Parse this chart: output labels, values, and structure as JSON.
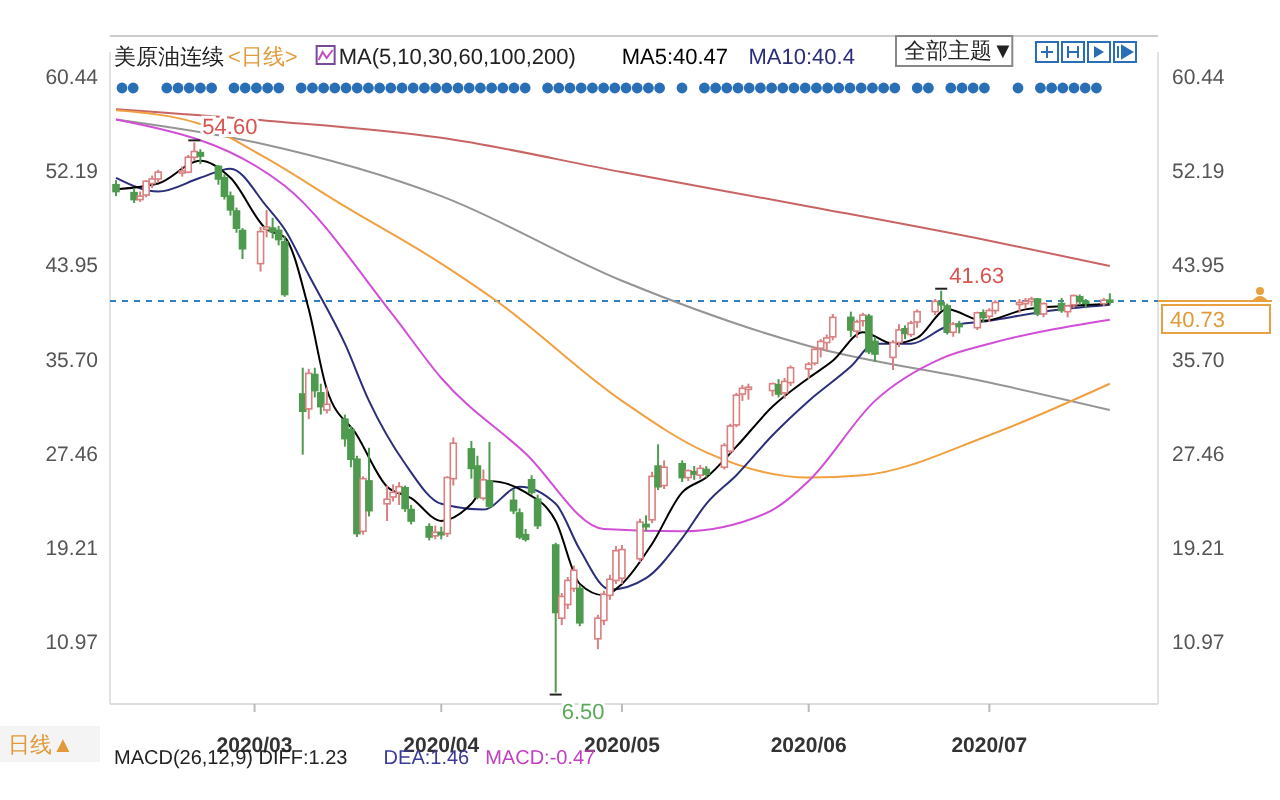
{
  "chart_data": {
    "type": "candlestick",
    "title": "美原油连续",
    "subtitle": "<日线>",
    "legend_title": "MA(5,10,30,60,100,200)",
    "legend": "top",
    "x": [
      "2020-02-07",
      "2020-02-10",
      "2020-02-11",
      "2020-02-12",
      "2020-02-13",
      "2020-02-14",
      "2020-02-18",
      "2020-02-19",
      "2020-02-20",
      "2020-02-21",
      "2020-02-24",
      "2020-02-25",
      "2020-02-26",
      "2020-02-27",
      "2020-02-28",
      "2020-03-02",
      "2020-03-03",
      "2020-03-04",
      "2020-03-05",
      "2020-03-06",
      "2020-03-09",
      "2020-03-10",
      "2020-03-11",
      "2020-03-12",
      "2020-03-13",
      "2020-03-16",
      "2020-03-17",
      "2020-03-18",
      "2020-03-19",
      "2020-03-20",
      "2020-03-23",
      "2020-03-24",
      "2020-03-25",
      "2020-03-26",
      "2020-03-27",
      "2020-03-30",
      "2020-03-31",
      "2020-04-01",
      "2020-04-02",
      "2020-04-03",
      "2020-04-06",
      "2020-04-07",
      "2020-04-08",
      "2020-04-09",
      "2020-04-13",
      "2020-04-14",
      "2020-04-15",
      "2020-04-16",
      "2020-04-17",
      "2020-04-20",
      "2020-04-21",
      "2020-04-22",
      "2020-04-23",
      "2020-04-24",
      "2020-04-27",
      "2020-04-28",
      "2020-04-29",
      "2020-04-30",
      "2020-05-01",
      "2020-05-04",
      "2020-05-05",
      "2020-05-06",
      "2020-05-07",
      "2020-05-08",
      "2020-05-11",
      "2020-05-12",
      "2020-05-13",
      "2020-05-14",
      "2020-05-15",
      "2020-05-18",
      "2020-05-19",
      "2020-05-20",
      "2020-05-21",
      "2020-05-22",
      "2020-05-26",
      "2020-05-27",
      "2020-05-28",
      "2020-05-29",
      "2020-06-01",
      "2020-06-02",
      "2020-06-03",
      "2020-06-04",
      "2020-06-05",
      "2020-06-08",
      "2020-06-09",
      "2020-06-10",
      "2020-06-11",
      "2020-06-12",
      "2020-06-15",
      "2020-06-16",
      "2020-06-17",
      "2020-06-18",
      "2020-06-19",
      "2020-06-22",
      "2020-06-23",
      "2020-06-24",
      "2020-06-25",
      "2020-06-26",
      "2020-06-29",
      "2020-06-30",
      "2020-07-01",
      "2020-07-02",
      "2020-07-06",
      "2020-07-07",
      "2020-07-08",
      "2020-07-09",
      "2020-07-10",
      "2020-07-13",
      "2020-07-14",
      "2020-07-15",
      "2020-07-16",
      "2020-07-17",
      "2020-07-20",
      "2020-07-21"
    ],
    "ohlc": [
      [
        50.9,
        51.3,
        49.9,
        50.3
      ],
      [
        50.2,
        50.6,
        49.3,
        49.6
      ],
      [
        49.6,
        50.3,
        49.4,
        49.9
      ],
      [
        50.0,
        51.3,
        49.8,
        51.2
      ],
      [
        51.0,
        51.7,
        50.6,
        51.4
      ],
      [
        51.4,
        52.2,
        51.1,
        52.0
      ],
      [
        52.1,
        52.5,
        51.6,
        52.1
      ],
      [
        52.0,
        53.5,
        51.9,
        53.3
      ],
      [
        53.3,
        54.6,
        53.0,
        53.8
      ],
      [
        53.7,
        54.0,
        52.7,
        53.4
      ],
      [
        52.5,
        52.6,
        50.9,
        51.4
      ],
      [
        51.5,
        51.8,
        49.6,
        49.9
      ],
      [
        49.9,
        50.3,
        48.2,
        48.7
      ],
      [
        48.6,
        48.9,
        46.7,
        47.1
      ],
      [
        46.9,
        47.1,
        44.4,
        45.3
      ],
      [
        44.0,
        47.2,
        43.3,
        46.8
      ],
      [
        47.0,
        48.7,
        46.3,
        47.2
      ],
      [
        47.1,
        48.0,
        46.2,
        46.8
      ],
      [
        46.9,
        47.3,
        45.6,
        46.1
      ],
      [
        45.9,
        46.4,
        41.1,
        41.3
      ],
      [
        32.6,
        34.9,
        27.3,
        31.1
      ],
      [
        31.3,
        34.8,
        30.4,
        34.4
      ],
      [
        34.3,
        34.9,
        32.3,
        32.9
      ],
      [
        32.7,
        33.5,
        30.8,
        31.5
      ],
      [
        31.2,
        33.2,
        30.9,
        31.7
      ],
      [
        30.4,
        30.8,
        28.0,
        28.7
      ],
      [
        29.5,
        29.8,
        26.2,
        26.9
      ],
      [
        26.9,
        27.2,
        20.1,
        20.4
      ],
      [
        20.6,
        25.4,
        20.3,
        25.2
      ],
      [
        25.0,
        27.9,
        21.9,
        22.4
      ],
      [
        23.0,
        24.6,
        21.5,
        23.4
      ],
      [
        23.6,
        24.7,
        23.2,
        24.0
      ],
      [
        24.0,
        24.9,
        22.9,
        24.5
      ],
      [
        24.4,
        24.6,
        22.3,
        22.6
      ],
      [
        22.5,
        22.9,
        21.2,
        21.5
      ],
      [
        21.0,
        21.3,
        19.8,
        20.1
      ],
      [
        20.2,
        21.1,
        19.9,
        20.5
      ],
      [
        20.5,
        21.0,
        19.9,
        20.3
      ],
      [
        20.4,
        25.4,
        20.1,
        25.3
      ],
      [
        25.2,
        28.8,
        24.6,
        28.3
      ],
      [
        27.8,
        28.5,
        25.2,
        26.1
      ],
      [
        26.3,
        27.2,
        23.4,
        23.6
      ],
      [
        23.5,
        26.0,
        23.3,
        25.1
      ],
      [
        25.0,
        28.4,
        22.6,
        22.8
      ],
      [
        23.3,
        24.3,
        22.1,
        22.4
      ],
      [
        22.2,
        22.6,
        19.9,
        20.1
      ],
      [
        20.3,
        20.8,
        19.7,
        19.9
      ],
      [
        25.1,
        25.5,
        23.8,
        24.0
      ],
      [
        23.4,
        23.8,
        20.8,
        21.1
      ],
      [
        19.4,
        19.6,
        6.5,
        13.5
      ],
      [
        13.0,
        15.2,
        12.4,
        14.9
      ],
      [
        14.2,
        16.6,
        13.8,
        16.3
      ],
      [
        15.6,
        17.6,
        15.3,
        17.2
      ],
      [
        15.6,
        15.9,
        12.3,
        12.6
      ],
      [
        11.2,
        13.3,
        10.3,
        13.0
      ],
      [
        12.8,
        15.4,
        12.4,
        15.1
      ],
      [
        15.0,
        16.8,
        14.6,
        16.4
      ],
      [
        16.3,
        19.3,
        16.0,
        18.9
      ],
      [
        16.5,
        19.4,
        16.0,
        19.0
      ],
      [
        18.2,
        21.7,
        17.9,
        21.4
      ],
      [
        21.2,
        22.0,
        20.6,
        21.0
      ],
      [
        21.6,
        25.8,
        21.3,
        25.4
      ],
      [
        26.3,
        28.2,
        24.2,
        24.5
      ],
      [
        24.6,
        26.8,
        24.3,
        26.2
      ],
      [
        26.5,
        26.8,
        24.9,
        25.3
      ],
      [
        25.3,
        26.0,
        25.0,
        25.9
      ],
      [
        25.8,
        26.3,
        25.1,
        25.6
      ],
      [
        25.5,
        26.4,
        25.2,
        26.1
      ],
      [
        26.0,
        26.3,
        25.3,
        25.6
      ],
      [
        26.2,
        28.3,
        26.0,
        28.1
      ],
      [
        27.6,
        30.0,
        27.4,
        29.8
      ],
      [
        29.9,
        32.7,
        29.7,
        32.5
      ],
      [
        32.6,
        33.4,
        32.0,
        33.1
      ],
      [
        33.0,
        33.5,
        32.1,
        33.2
      ],
      [
        32.9,
        33.6,
        32.4,
        33.5
      ],
      [
        33.4,
        33.9,
        32.3,
        32.6
      ],
      [
        32.7,
        34.0,
        32.2,
        33.7
      ],
      [
        33.6,
        35.1,
        33.3,
        34.9
      ],
      [
        34.8,
        35.4,
        33.9,
        35.2
      ],
      [
        35.3,
        36.7,
        35.1,
        36.5
      ],
      [
        36.6,
        37.4,
        35.8,
        37.2
      ],
      [
        37.1,
        37.8,
        36.3,
        37.5
      ],
      [
        37.6,
        39.6,
        37.3,
        39.3
      ],
      [
        39.3,
        39.8,
        37.6,
        38.2
      ],
      [
        38.1,
        39.1,
        37.5,
        38.9
      ],
      [
        39.0,
        39.7,
        38.5,
        39.5
      ],
      [
        39.4,
        39.6,
        36.1,
        36.3
      ],
      [
        37.2,
        37.6,
        35.4,
        36.1
      ],
      [
        35.8,
        37.3,
        34.7,
        37.1
      ],
      [
        37.1,
        38.7,
        36.7,
        38.2
      ],
      [
        38.3,
        38.6,
        37.4,
        37.9
      ],
      [
        37.8,
        39.0,
        37.6,
        38.8
      ],
      [
        38.9,
        40.0,
        38.4,
        39.8
      ],
      [
        39.8,
        40.9,
        39.5,
        40.7
      ],
      [
        40.6,
        41.63,
        39.9,
        40.4
      ],
      [
        40.3,
        40.5,
        37.8,
        38.0
      ],
      [
        38.0,
        38.9,
        37.6,
        38.7
      ],
      [
        38.7,
        39.0,
        37.9,
        38.5
      ],
      [
        38.4,
        39.8,
        38.2,
        39.7
      ],
      [
        39.7,
        40.0,
        38.9,
        39.3
      ],
      [
        39.4,
        40.1,
        38.9,
        39.9
      ],
      [
        39.9,
        40.8,
        39.6,
        40.6
      ],
      [
        40.6,
        40.9,
        39.7,
        40.6
      ],
      [
        40.5,
        41.0,
        40.1,
        40.7
      ],
      [
        40.7,
        41.1,
        40.3,
        40.9
      ],
      [
        40.9,
        41.0,
        39.4,
        39.6
      ],
      [
        39.6,
        40.6,
        39.3,
        40.5
      ],
      [
        40.5,
        41.0,
        39.7,
        39.9
      ],
      [
        39.8,
        40.4,
        39.3,
        40.3
      ],
      [
        40.4,
        41.3,
        40.1,
        41.2
      ],
      [
        41.1,
        41.3,
        40.4,
        40.7
      ],
      [
        40.7,
        40.9,
        40.1,
        40.6
      ],
      [
        40.5,
        41.0,
        40.3,
        40.8
      ],
      [
        40.8,
        41.4,
        40.4,
        40.73
      ]
    ],
    "series": [
      {
        "name": "MA5:40.47",
        "type": "line",
        "color": "#000000",
        "x": [
          "2020-02-07",
          "2020-02-14",
          "2020-02-21",
          "2020-02-26",
          "2020-03-03",
          "2020-03-06",
          "2020-03-10",
          "2020-03-13",
          "2020-03-18",
          "2020-03-23",
          "2020-03-27",
          "2020-04-01",
          "2020-04-06",
          "2020-04-09",
          "2020-04-15",
          "2020-04-20",
          "2020-04-24",
          "2020-04-28",
          "2020-05-01",
          "2020-05-06",
          "2020-05-11",
          "2020-05-15",
          "2020-05-20",
          "2020-05-26",
          "2020-06-01",
          "2020-06-05",
          "2020-06-10",
          "2020-06-15",
          "2020-06-19",
          "2020-06-24",
          "2020-06-30",
          "2020-07-07",
          "2020-07-14",
          "2020-07-21"
        ],
        "values": [
          50.5,
          51,
          53,
          51.5,
          47,
          46.3,
          40,
          33,
          29,
          24.5,
          23.5,
          21.5,
          23,
          25,
          24,
          21.5,
          16,
          15,
          16,
          19.5,
          24,
          25.3,
          28,
          31.5,
          34,
          35.5,
          38,
          37,
          37.5,
          40,
          39,
          40,
          40.3,
          40.5
        ]
      },
      {
        "name": "MA10:40.4",
        "type": "line",
        "color": "#2b2f7a",
        "x": [
          "2020-02-07",
          "2020-02-14",
          "2020-02-21",
          "2020-02-26",
          "2020-03-03",
          "2020-03-06",
          "2020-03-10",
          "2020-03-16",
          "2020-03-20",
          "2020-03-26",
          "2020-04-01",
          "2020-04-08",
          "2020-04-14",
          "2020-04-20",
          "2020-04-24",
          "2020-04-29",
          "2020-05-05",
          "2020-05-11",
          "2020-05-15",
          "2020-05-20",
          "2020-05-26",
          "2020-06-01",
          "2020-06-08",
          "2020-06-12",
          "2020-06-18",
          "2020-06-24",
          "2020-07-01",
          "2020-07-10",
          "2020-07-21"
        ],
        "values": [
          51.5,
          50.3,
          51.5,
          52.3,
          49,
          47,
          43,
          37,
          32,
          26.5,
          23,
          22.5,
          24.5,
          23,
          19,
          15.5,
          16.5,
          20,
          23,
          25.5,
          29,
          32,
          35,
          37,
          37,
          38.5,
          39,
          39.8,
          40.4
        ]
      },
      {
        "type": "line",
        "color": "#d14fd6",
        "x": [
          "2020-02-07",
          "2020-03-06",
          "2020-03-24",
          "2020-04-01",
          "2020-04-15",
          "2020-04-28",
          "2020-05-11",
          "2020-05-25",
          "2020-06-01",
          "2020-06-12",
          "2020-06-23",
          "2020-07-01",
          "2020-07-21"
        ],
        "values": [
          56.6,
          50.8,
          39.5,
          34,
          27.4,
          20.8,
          20.6,
          22.2,
          25,
          32,
          35.7,
          37,
          39.1
        ]
      },
      {
        "type": "line",
        "color": "#f0a040",
        "x": [
          "2020-02-07",
          "2020-02-21",
          "2020-03-02",
          "2020-03-16",
          "2020-04-01",
          "2020-04-10",
          "2020-05-01",
          "2020-05-15",
          "2020-06-01",
          "2020-06-10",
          "2020-07-01",
          "2020-07-21"
        ],
        "values": [
          57.4,
          56.2,
          53.5,
          49,
          44,
          40.8,
          32,
          27.5,
          25.3,
          25.5,
          29,
          33.5
        ]
      },
      {
        "type": "line",
        "color": "#959595",
        "x": [
          "2020-02-07",
          "2020-03-02",
          "2020-04-01",
          "2020-05-01",
          "2020-06-01",
          "2020-07-01",
          "2020-07-21"
        ],
        "values": [
          56.6,
          54.5,
          49.9,
          42.5,
          36.8,
          33.6,
          31.2
        ]
      },
      {
        "type": "line",
        "color": "#c86464",
        "x": [
          "2020-02-07",
          "2020-03-03",
          "2020-04-01",
          "2020-05-01",
          "2020-06-01",
          "2020-07-01",
          "2020-07-21"
        ],
        "values": [
          57.5,
          56.5,
          55,
          52,
          49,
          46,
          43.8
        ]
      }
    ],
    "xlim": [
      "2020-02-06",
      "2020-07-29"
    ],
    "xticks": [
      {
        "value": "2020-03-01",
        "label": "2020/03"
      },
      {
        "value": "2020-04-01",
        "label": "2020/04"
      },
      {
        "value": "2020-05-01",
        "label": "2020/05"
      },
      {
        "value": "2020-06-01",
        "label": "2020/06"
      },
      {
        "value": "2020-07-01",
        "label": "2020/07"
      }
    ],
    "ylim": [
      5.5,
      62.5
    ],
    "yticks": [
      60.44,
      52.19,
      43.95,
      {
        "value": 35.7,
        "label": "35.70"
      },
      27.46,
      19.21,
      10.97
    ],
    "y2lim": [
      5.5,
      62.5
    ],
    "y2ticks": [
      60.44,
      52.19,
      43.95,
      {
        "value": 35.7,
        "label": "35.70"
      },
      27.46,
      19.21,
      10.97
    ],
    "ref_lines": [
      {
        "axis": "y2",
        "value": 40.73,
        "label": "40.73",
        "color": "#2f7fc1",
        "line_style": "dashed"
      }
    ],
    "annotations": [
      {
        "text": "54.60",
        "x": "2020-02-20",
        "y": 54.6
      },
      {
        "text": "41.63",
        "x": "2020-06-23",
        "y": 41.63
      },
      {
        "text": "6.50",
        "x": "2020-04-20",
        "y": 6.5
      },
      "全部主题▼",
      "日线▲",
      "MACD(26,12,9) DIFF:1.23",
      "DEA:1.46",
      "MACD:-0.47"
    ]
  }
}
